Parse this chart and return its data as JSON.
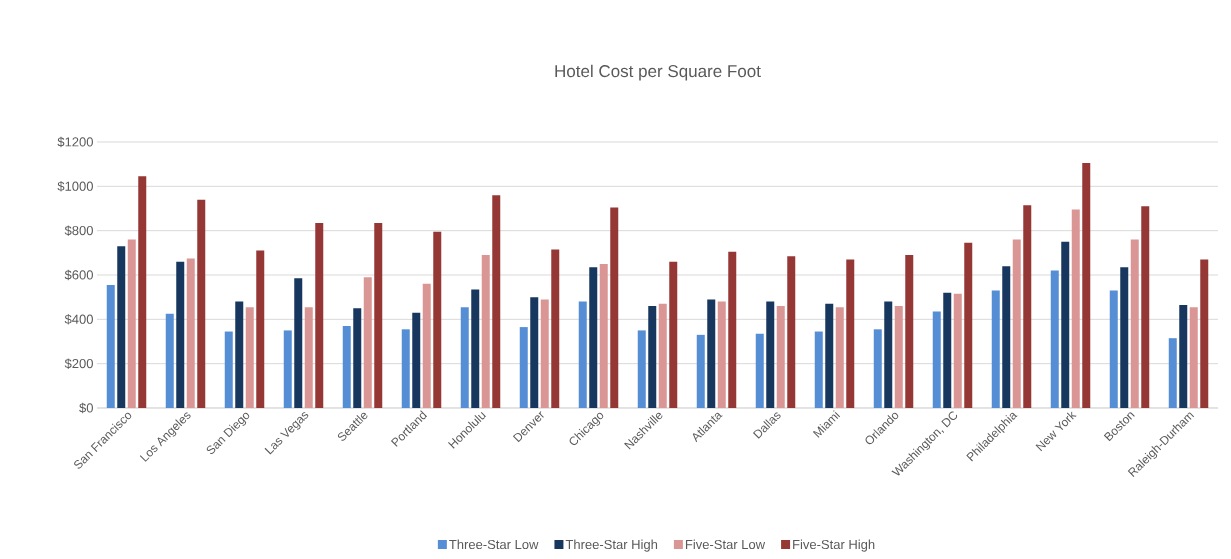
{
  "chart_data": {
    "type": "bar",
    "title": "Hotel Cost per Square Foot",
    "categories": [
      "San Francisco",
      "Los Angeles",
      "San Diego",
      "Las Vegas",
      "Seattle",
      "Portland",
      "Honolulu",
      "Denver",
      "Chicago",
      "Nashville",
      "Atlanta",
      "Dallas",
      "Miami",
      "Orlando",
      "Washington, DC",
      "Philadelphia",
      "New York",
      "Boston",
      "Raleigh-Durham"
    ],
    "series": [
      {
        "name": "Three-Star Low",
        "color": "#558ed5",
        "values": [
          555,
          425,
          345,
          350,
          370,
          355,
          455,
          365,
          480,
          350,
          330,
          335,
          345,
          355,
          435,
          530,
          620,
          530,
          315
        ]
      },
      {
        "name": "Three-Star High",
        "color": "#17375e",
        "values": [
          730,
          660,
          480,
          585,
          450,
          430,
          535,
          500,
          635,
          460,
          490,
          480,
          470,
          480,
          520,
          640,
          750,
          635,
          465
        ]
      },
      {
        "name": "Five-Star Low",
        "color": "#da9694",
        "values": [
          760,
          675,
          455,
          455,
          590,
          560,
          690,
          490,
          650,
          470,
          480,
          460,
          455,
          460,
          515,
          760,
          895,
          760,
          455
        ]
      },
      {
        "name": "Five-Star High",
        "color": "#953735",
        "values": [
          1045,
          940,
          710,
          835,
          835,
          795,
          960,
          715,
          905,
          660,
          705,
          685,
          670,
          690,
          745,
          915,
          1105,
          910,
          670
        ]
      }
    ],
    "ylim": [
      0,
      1200
    ],
    "yticks": [
      {
        "value": 0,
        "label": "$0"
      },
      {
        "value": 200,
        "label": "$200"
      },
      {
        "value": 400,
        "label": "$400"
      },
      {
        "value": 600,
        "label": "$600"
      },
      {
        "value": 800,
        "label": "$800"
      },
      {
        "value": 1000,
        "label": "$1000"
      },
      {
        "value": 1200,
        "label": "$1200"
      }
    ],
    "grid": "y",
    "legend": "bottom"
  }
}
